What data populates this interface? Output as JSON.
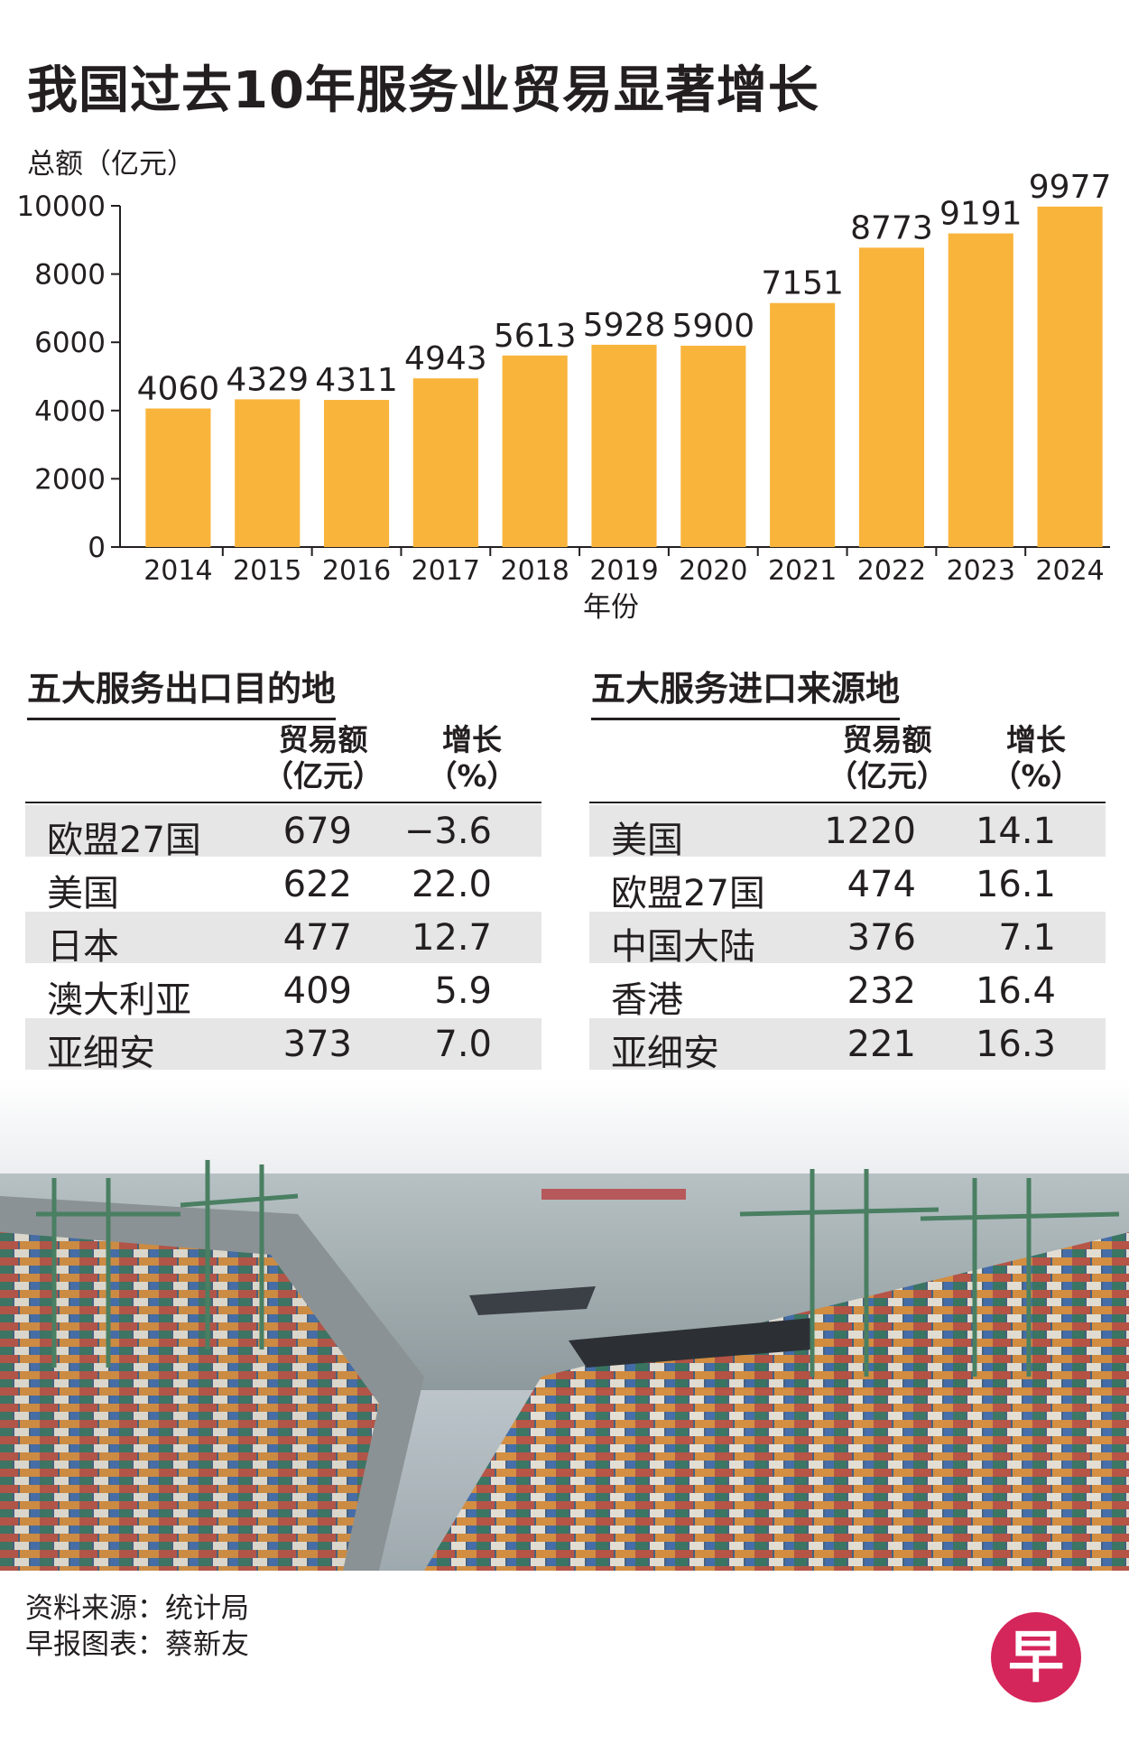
{
  "title": "我国过去10年服务业贸易显著增长",
  "chart_data": {
    "type": "bar",
    "ylabel": "总额（亿元）",
    "xlabel": "年份",
    "categories": [
      "2014",
      "2015",
      "2016",
      "2017",
      "2018",
      "2019",
      "2020",
      "2021",
      "2022",
      "2023",
      "2024"
    ],
    "values": [
      4060,
      4329,
      4311,
      4943,
      5613,
      5928,
      5900,
      7151,
      8773,
      9191,
      9977
    ],
    "yticks": [
      0,
      2000,
      4000,
      6000,
      8000,
      10000
    ],
    "ylim": [
      0,
      10000
    ],
    "bar_color": "#f9b43c",
    "grid": false,
    "data_labels": true
  },
  "exports": {
    "title": "五大服务出口目的地",
    "col_amount": [
      "贸易额",
      "（亿元）"
    ],
    "col_growth": [
      "增长",
      "（%）"
    ],
    "rows": [
      {
        "name": "欧盟27国",
        "amount": "679",
        "growth": "−3.6"
      },
      {
        "name": "美国",
        "amount": "622",
        "growth": "22.0"
      },
      {
        "name": "日本",
        "amount": "477",
        "growth": "12.7"
      },
      {
        "name": "澳大利亚",
        "amount": "409",
        "growth": "5.9"
      },
      {
        "name": "亚细安",
        "amount": "373",
        "growth": "7.0"
      }
    ]
  },
  "imports": {
    "title": "五大服务进口来源地",
    "col_amount": [
      "贸易额",
      "（亿元）"
    ],
    "col_growth": [
      "增长",
      "（%）"
    ],
    "rows": [
      {
        "name": "美国",
        "amount": "1220",
        "growth": "14.1"
      },
      {
        "name": "欧盟27国",
        "amount": "474",
        "growth": "16.1"
      },
      {
        "name": "中国大陆",
        "amount": "376",
        "growth": "7.1"
      },
      {
        "name": "香港",
        "amount": "232",
        "growth": "16.4"
      },
      {
        "name": "亚细安",
        "amount": "221",
        "growth": "16.3"
      }
    ]
  },
  "source": {
    "line1": "资料来源：统计局",
    "line2": "早报图表：蔡新友"
  },
  "logo": {
    "char": "早",
    "color": "#d5265b"
  },
  "photo": {
    "icon": "container-port-photo"
  }
}
